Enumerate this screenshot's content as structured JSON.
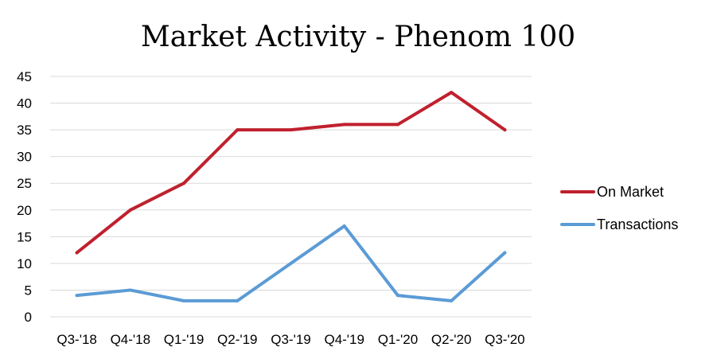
{
  "chart_data": {
    "type": "line",
    "title": "Market Activity - Phenom 100",
    "xlabel": "",
    "ylabel": "",
    "categories": [
      "Q3-'18",
      "Q4-'18",
      "Q1-'19",
      "Q2-'19",
      "Q3-'19",
      "Q4-'19",
      "Q1-'20",
      "Q2-'20",
      "Q3-'20"
    ],
    "ylim": [
      0,
      45
    ],
    "yticks": [
      0,
      5,
      10,
      15,
      20,
      25,
      30,
      35,
      40,
      45
    ],
    "grid": true,
    "legend_position": "right",
    "series": [
      {
        "name": "On Market",
        "color": "#c0202e",
        "values": [
          12,
          20,
          25,
          35,
          35,
          36,
          36,
          42,
          35
        ]
      },
      {
        "name": "Transactions",
        "color": "#5b9bd5",
        "values": [
          4,
          5,
          3,
          3,
          10,
          17,
          4,
          3,
          12
        ]
      }
    ]
  }
}
